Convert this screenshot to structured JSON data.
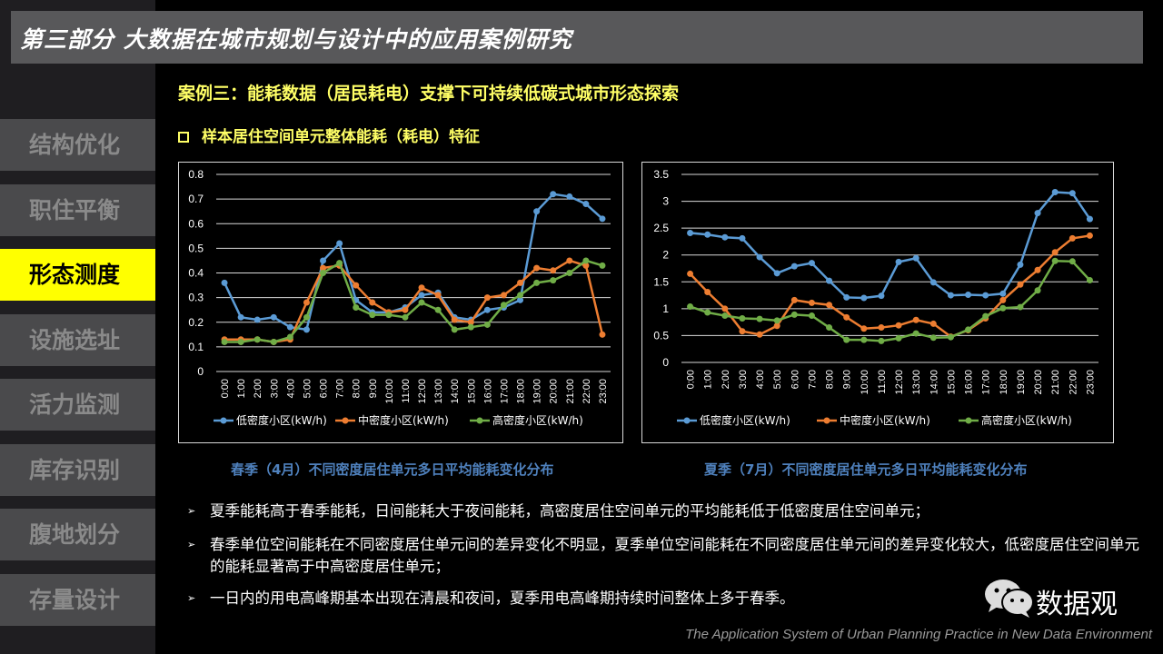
{
  "header": {
    "title": "第三部分  大数据在城市规划与设计中的应用案例研究"
  },
  "sidebar": {
    "items": [
      {
        "label": "结构优化",
        "active": false
      },
      {
        "label": "职住平衡",
        "active": false
      },
      {
        "label": "形态测度",
        "active": true
      },
      {
        "label": "设施选址",
        "active": false
      },
      {
        "label": "活力监测",
        "active": false
      },
      {
        "label": "库存识别",
        "active": false
      },
      {
        "label": "腹地划分",
        "active": false
      },
      {
        "label": "存量设计",
        "active": false
      }
    ]
  },
  "main": {
    "case_title": "案例三：能耗数据（居民耗电）支撑下可持续低碳式城市形态探索",
    "section_title": "样本居住空间单元整体能耗（耗电）特征",
    "section_icon": "checkbox-square-icon",
    "bullets": [
      "夏季能耗高于春季能耗，日间能耗大于夜间能耗，高密度居住空间单元的平均能耗低于低密度居住空间单元；",
      "春季单位空间能耗在不同密度居住单元间的差异变化不明显，夏季单位空间能耗在不同密度居住单元间的差异变化较大，低密度居住空间单元的能耗显著高于中高密度居住单元；",
      "一日内的用电高峰期基本出现在清晨和夜间，夏季用电高峰期持续时间整体上多于春季。"
    ],
    "bullet_marker": "➢"
  },
  "watermark": {
    "label": "数据观",
    "icon": "wechat-icon"
  },
  "footer": {
    "text": "The Application System of Urban Planning Practice in New Data Environment"
  },
  "colors": {
    "accent": "#ffff00",
    "low": "#5b9bd5",
    "mid": "#ed7d31",
    "high": "#70ad47",
    "caption": "#4f81bd"
  },
  "chart_data": [
    {
      "type": "line",
      "title": "春季（4月）不同密度居住单元多日平均能耗变化分布",
      "xlabel": "",
      "ylabel": "",
      "ylim": [
        0,
        0.8
      ],
      "yticks": [
        "0",
        "0.1",
        "0.2",
        "0.3",
        "0.4",
        "0.5",
        "0.6",
        "0.7",
        "0.8"
      ],
      "grid": true,
      "legend": "bottom",
      "categories": [
        "0:00",
        "1:00",
        "2:00",
        "3:00",
        "4:00",
        "5:00",
        "6:00",
        "7:00",
        "8:00",
        "9:00",
        "10:00",
        "11:00",
        "12:00",
        "13:00",
        "14:00",
        "15:00",
        "16:00",
        "17:00",
        "18:00",
        "19:00",
        "20:00",
        "21:00",
        "22:00",
        "23:00"
      ],
      "series": [
        {
          "name": "低密度小区(kW/h)",
          "values": [
            0.36,
            0.22,
            0.21,
            0.22,
            0.18,
            0.17,
            0.45,
            0.52,
            0.29,
            0.24,
            0.24,
            0.26,
            0.31,
            0.32,
            0.22,
            0.21,
            0.25,
            0.26,
            0.29,
            0.65,
            0.72,
            0.71,
            0.68,
            0.62
          ]
        },
        {
          "name": "中密度小区(kW/h)",
          "values": [
            0.13,
            0.13,
            0.13,
            0.12,
            0.13,
            0.28,
            0.42,
            0.43,
            0.35,
            0.28,
            0.24,
            0.25,
            0.34,
            0.31,
            0.21,
            0.2,
            0.3,
            0.31,
            0.36,
            0.42,
            0.41,
            0.45,
            0.43,
            0.15
          ]
        },
        {
          "name": "高密度小区(kW/h)",
          "values": [
            0.12,
            0.12,
            0.13,
            0.12,
            0.14,
            0.22,
            0.4,
            0.44,
            0.26,
            0.23,
            0.23,
            0.22,
            0.28,
            0.25,
            0.17,
            0.18,
            0.19,
            0.27,
            0.31,
            0.36,
            0.37,
            0.4,
            0.45,
            0.43
          ]
        }
      ]
    },
    {
      "type": "line",
      "title": "夏季（7月）不同密度居住单元多日平均能耗变化分布",
      "xlabel": "",
      "ylabel": "",
      "ylim": [
        0,
        3.5
      ],
      "yticks": [
        "0",
        "0.5",
        "1",
        "1.5",
        "2",
        "2.5",
        "3",
        "3.5"
      ],
      "grid": true,
      "legend": "bottom",
      "categories": [
        "0:00",
        "1:00",
        "2:00",
        "3:00",
        "4:00",
        "5:00",
        "6:00",
        "7:00",
        "8:00",
        "9:00",
        "10:00",
        "11:00",
        "12:00",
        "13:00",
        "14:00",
        "15:00",
        "16:00",
        "17:00",
        "18:00",
        "19:00",
        "20:00",
        "21:00",
        "22:00",
        "23:00"
      ],
      "series": [
        {
          "name": "低密度小区(kW/h)",
          "values": [
            2.41,
            2.38,
            2.33,
            2.31,
            1.96,
            1.66,
            1.79,
            1.85,
            1.52,
            1.21,
            1.2,
            1.24,
            1.87,
            1.94,
            1.49,
            1.25,
            1.26,
            1.25,
            1.28,
            1.82,
            2.78,
            3.17,
            3.15,
            2.67
          ]
        },
        {
          "name": "中密度小区(kW/h)",
          "values": [
            1.65,
            1.31,
            1.0,
            0.58,
            0.52,
            0.68,
            1.16,
            1.11,
            1.07,
            0.84,
            0.63,
            0.65,
            0.69,
            0.79,
            0.72,
            0.48,
            0.6,
            0.82,
            1.16,
            1.45,
            1.72,
            2.05,
            2.31,
            2.36
          ]
        },
        {
          "name": "高密度小区(kW/h)",
          "values": [
            1.04,
            0.93,
            0.87,
            0.82,
            0.81,
            0.78,
            0.89,
            0.87,
            0.65,
            0.42,
            0.42,
            0.4,
            0.45,
            0.54,
            0.46,
            0.47,
            0.61,
            0.86,
            1.01,
            1.03,
            1.34,
            1.89,
            1.88,
            1.53
          ]
        }
      ]
    }
  ]
}
